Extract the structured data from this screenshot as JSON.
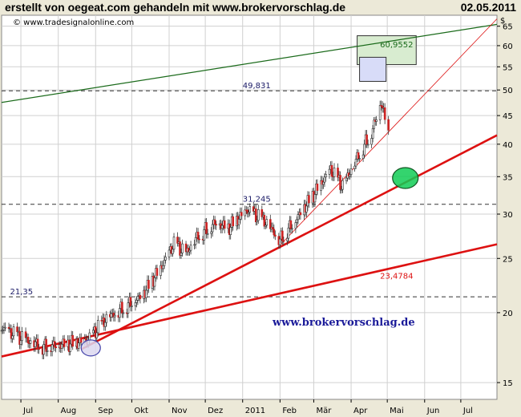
{
  "header": {
    "left": "erstellt von oegeat.com gehandeln mit www.brokervorschlag.de",
    "right": "02.05.2011"
  },
  "colors": {
    "background": "#ece9d8",
    "plot_bg": "#ffffff",
    "trend_red": "#dd1111",
    "trend_green": "#1a6a1a",
    "hline_dash": "#333333",
    "candle_up": "#2a2a2a",
    "candle_down": "#cc2222",
    "watermark": "#1a1a99"
  },
  "chart_data": {
    "type": "candlestick",
    "watermark_top": "© www.tradesignalonline.com",
    "watermark_mid": "www.brokervorschlag.de",
    "y_unit": "$",
    "y_scale": "log",
    "y_range": [
      14,
      68
    ],
    "y_ticks": [
      15,
      20,
      25,
      30,
      35,
      40,
      45,
      50,
      55,
      60,
      65
    ],
    "x_range": [
      "2010-06-15",
      "2011-07-31"
    ],
    "x_ticks": [
      {
        "label": "Jul",
        "date": "2010-07-01"
      },
      {
        "label": "Aug",
        "date": "2010-08-01"
      },
      {
        "label": "Sep",
        "date": "2010-09-01"
      },
      {
        "label": "Okt",
        "date": "2010-10-01"
      },
      {
        "label": "Nov",
        "date": "2010-11-01"
      },
      {
        "label": "Dez",
        "date": "2010-12-01"
      },
      {
        "label": "2011",
        "date": "2011-01-01"
      },
      {
        "label": "Feb",
        "date": "2011-02-01"
      },
      {
        "label": "Mär",
        "date": "2011-03-01"
      },
      {
        "label": "Apr",
        "date": "2011-04-01"
      },
      {
        "label": "Mai",
        "date": "2011-05-01"
      },
      {
        "label": "Jun",
        "date": "2011-06-01"
      },
      {
        "label": "Jul",
        "date": "2011-07-01"
      }
    ],
    "price_path": [
      {
        "date": "2010-06-15",
        "close": 18.8
      },
      {
        "date": "2010-07-01",
        "close": 18.0
      },
      {
        "date": "2010-07-20",
        "close": 17.4
      },
      {
        "date": "2010-08-10",
        "close": 17.6
      },
      {
        "date": "2010-08-25",
        "close": 17.8
      },
      {
        "date": "2010-09-10",
        "close": 19.5
      },
      {
        "date": "2010-09-25",
        "close": 20.5
      },
      {
        "date": "2010-10-10",
        "close": 21.5
      },
      {
        "date": "2010-10-25",
        "close": 24.0
      },
      {
        "date": "2010-11-05",
        "close": 26.5
      },
      {
        "date": "2010-11-15",
        "close": 25.5
      },
      {
        "date": "2010-11-25",
        "close": 27.5
      },
      {
        "date": "2010-12-10",
        "close": 29.0
      },
      {
        "date": "2010-12-20",
        "close": 28.3
      },
      {
        "date": "2011-01-05",
        "close": 30.5
      },
      {
        "date": "2011-01-20",
        "close": 29.0
      },
      {
        "date": "2011-02-01",
        "close": 27.0
      },
      {
        "date": "2011-02-15",
        "close": 29.5
      },
      {
        "date": "2011-03-01",
        "close": 32.5
      },
      {
        "date": "2011-03-15",
        "close": 36.0
      },
      {
        "date": "2011-03-25",
        "close": 33.5
      },
      {
        "date": "2011-04-05",
        "close": 37.5
      },
      {
        "date": "2011-04-18",
        "close": 42.0
      },
      {
        "date": "2011-04-26",
        "close": 47.5
      },
      {
        "date": "2011-05-02",
        "close": 41.5
      }
    ],
    "horizontal_levels": [
      {
        "label": "49,831",
        "value": 49.831,
        "label_date": "2011-01-01"
      },
      {
        "label": "31,245",
        "value": 31.245,
        "label_date": "2011-01-01"
      },
      {
        "label": "21,35",
        "value": 21.35,
        "label_date": "2010-06-22"
      }
    ],
    "trend_lines": [
      {
        "name": "green",
        "color": "#1a6a1a",
        "width": 1.2,
        "points": [
          {
            "date": "2010-06-15",
            "value": 47.5
          },
          {
            "date": "2011-07-31",
            "value": 65.5
          }
        ],
        "label": "60,9552",
        "label_date": "2011-04-25",
        "label_value": 59.6
      },
      {
        "name": "red_thin",
        "color": "#dd1111",
        "width": 0.8,
        "points": [
          {
            "date": "2011-02-01",
            "value": 26.4
          },
          {
            "date": "2011-07-31",
            "value": 67.0
          }
        ],
        "label": null
      },
      {
        "name": "red_mid",
        "color": "#dd1111",
        "width": 2.6,
        "points": [
          {
            "date": "2010-08-20",
            "value": 17.2
          },
          {
            "date": "2011-07-31",
            "value": 41.5
          }
        ],
        "label": null
      },
      {
        "name": "red_low",
        "color": "#dd1111",
        "width": 2.6,
        "points": [
          {
            "date": "2010-06-15",
            "value": 16.7
          },
          {
            "date": "2011-07-31",
            "value": 26.5
          }
        ],
        "label": "23,4784",
        "label_date": "2011-04-25",
        "label_value": 23.0
      }
    ],
    "boxes": [
      {
        "name": "green-box",
        "fill": "#d8ecd0",
        "stroke": "#333333",
        "date_from": "2011-04-06",
        "date_to": "2011-05-25",
        "value_from": 55.5,
        "value_to": 62.5
      },
      {
        "name": "blue-box",
        "fill": "#d8dcf8",
        "stroke": "#333333",
        "date_from": "2011-04-08",
        "date_to": "2011-04-30",
        "value_from": 51.8,
        "value_to": 57.2
      }
    ],
    "ellipses": [
      {
        "name": "purple-ellipse",
        "fill": "#dcd8f0",
        "stroke": "#4444aa",
        "date": "2010-08-28",
        "value": 17.3,
        "rx": 12,
        "ry": 10
      },
      {
        "name": "green-ellipse",
        "fill": "#11cc55",
        "stroke": "#115522",
        "date": "2011-05-16",
        "value": 34.8,
        "rx": 16,
        "ry": 13
      }
    ]
  }
}
